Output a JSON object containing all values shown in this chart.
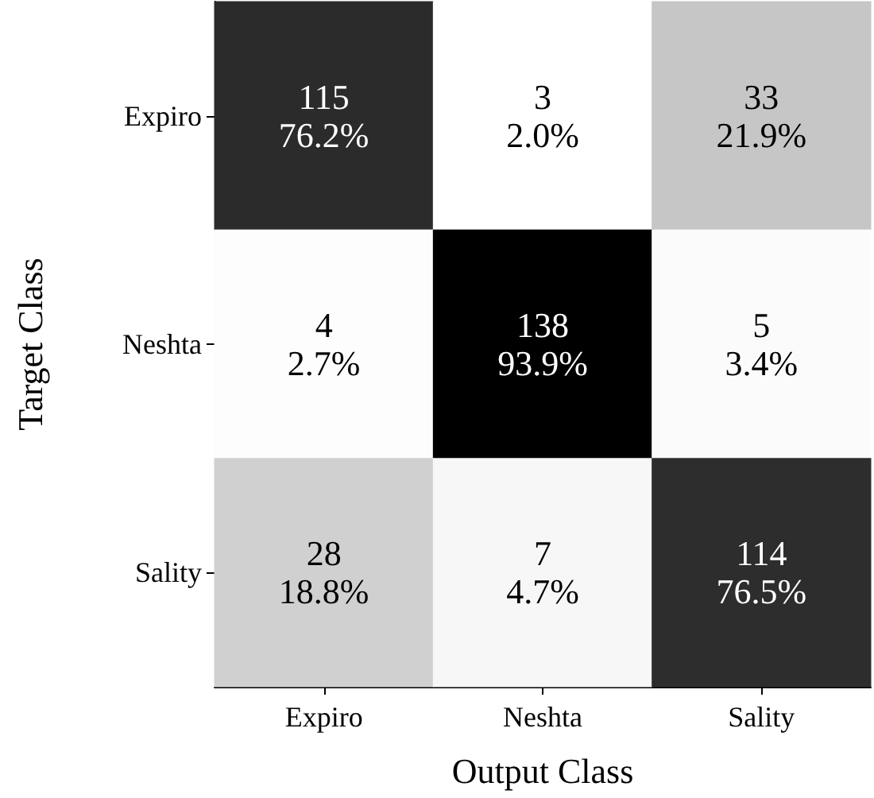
{
  "chart_data": {
    "type": "heatmap",
    "xlabel": "Output Class",
    "ylabel": "Target Class",
    "categories": [
      "Expiro",
      "Neshta",
      "Sality"
    ],
    "y_categories": [
      "Expiro",
      "Neshta",
      "Sality"
    ],
    "cells": [
      [
        115,
        3,
        33
      ],
      [
        4,
        138,
        5
      ],
      [
        28,
        7,
        114
      ]
    ],
    "data_labels": true,
    "annotations": [
      "76.2%",
      "2.0%",
      "21.9%",
      "2.7%",
      "93.9%",
      "3.4%",
      "18.8%",
      "4.7%",
      "76.5%"
    ]
  }
}
